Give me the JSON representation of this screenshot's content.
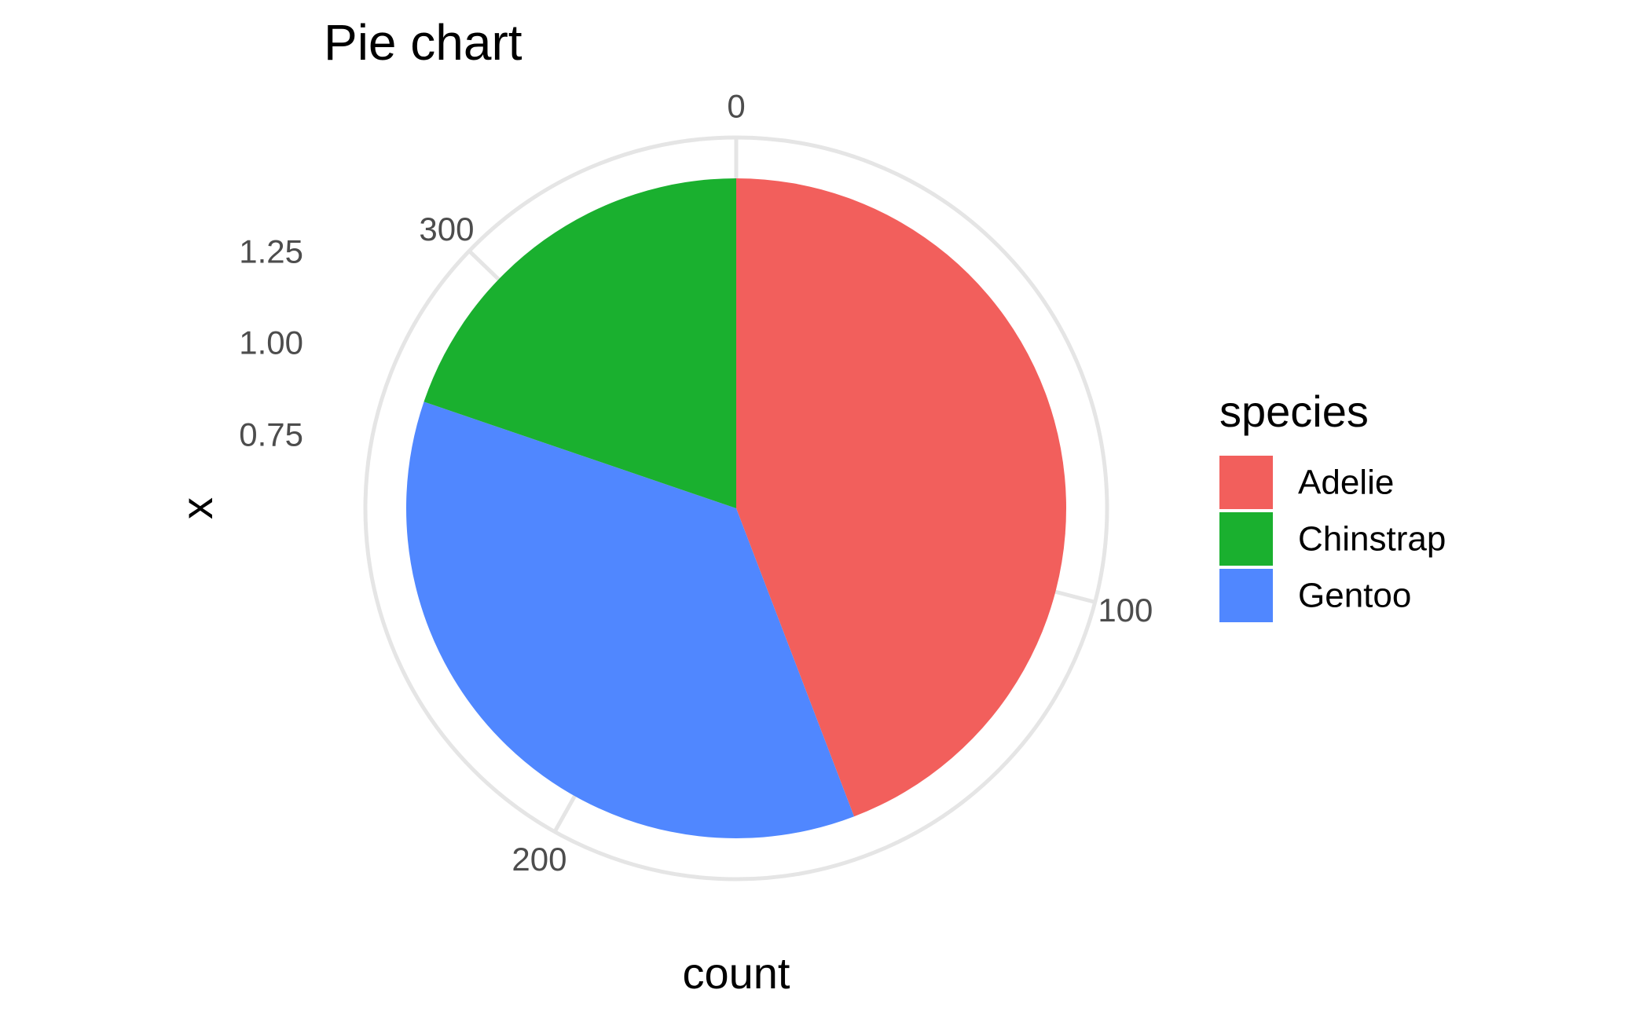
{
  "chart_data": {
    "type": "pie",
    "title": "Pie chart",
    "xlabel": "count",
    "ylabel": "x",
    "categories": [
      "Adelie",
      "Gentoo",
      "Chinstrap"
    ],
    "values": [
      152,
      124,
      68
    ],
    "colors": {
      "Adelie": "#F25F5C",
      "Chinstrap": "#1AB02F",
      "Gentoo": "#5087FF"
    },
    "angle_ticks": [
      0,
      100,
      200,
      300
    ],
    "radial_ticks": [
      "0.75",
      "1.00",
      "1.25"
    ],
    "legend": {
      "title": "species",
      "entries": [
        "Adelie",
        "Chinstrap",
        "Gentoo"
      ],
      "position": "right"
    },
    "grid_color": "#e5e5e5"
  }
}
